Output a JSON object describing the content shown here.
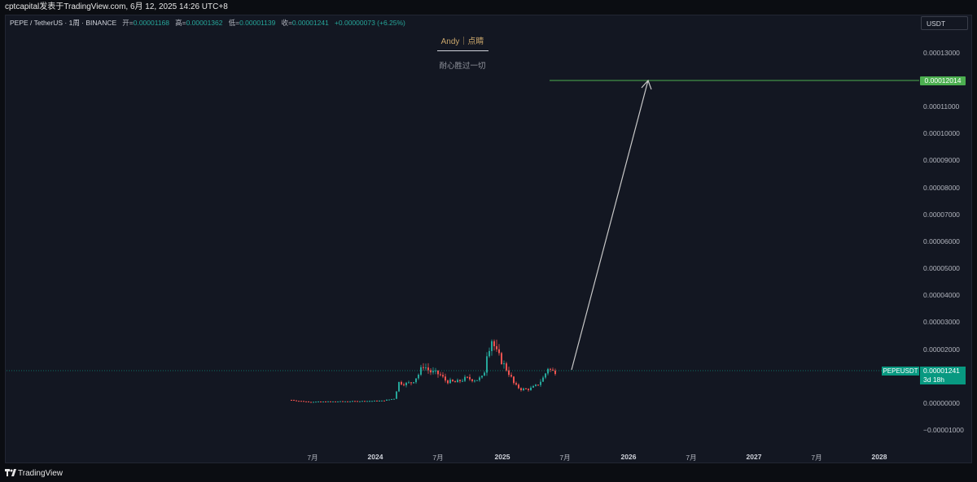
{
  "header": {
    "text": "cptcapital发表于TradingView.com,  6月 12, 2025 14:26 UTC+8"
  },
  "legend": {
    "symbol": "PEPE / TetherUS · 1周 · BINANCE",
    "open_label": "开=",
    "open": "0.00001168",
    "high_label": "高=",
    "high": "0.00001362",
    "low_label": "低=",
    "low": "0.00001139",
    "close_label": "收=",
    "close": "0.00001241",
    "change": "+0.00000073 (+6.25%)"
  },
  "note": {
    "title": "Andy｜点睛",
    "subtitle": "耐心胜过一切"
  },
  "currency": "USDT",
  "y_axis": {
    "ticks": [
      "0.00013000",
      "0.00011000",
      "0.00010000",
      "0.00009000",
      "0.00008000",
      "0.00007000",
      "0.00006000",
      "0.00005000",
      "0.00004000",
      "0.00003000",
      "0.00002000",
      "0.00000000",
      "−0.00001000"
    ],
    "target_price": "0.00012014",
    "symbol_tag": "PEPEUSDT",
    "last_price": "0.00001241",
    "countdown": "3d 18h"
  },
  "x_axis": {
    "ticks": [
      {
        "label": "7月",
        "year": false
      },
      {
        "label": "2024",
        "year": true
      },
      {
        "label": "7月",
        "year": false
      },
      {
        "label": "2025",
        "year": true
      },
      {
        "label": "7月",
        "year": false
      },
      {
        "label": "2026",
        "year": true
      },
      {
        "label": "7月",
        "year": false
      },
      {
        "label": "2027",
        "year": true
      },
      {
        "label": "7月",
        "year": false
      },
      {
        "label": "2028",
        "year": true
      }
    ]
  },
  "footer": {
    "brand": "TradingView"
  },
  "colors": {
    "up": "#26a69a",
    "down": "#ef5350",
    "target": "#4caf50",
    "arrow": "#c8c8c8"
  },
  "chart_data": {
    "type": "candlestick",
    "interval": "1W",
    "ylim": [
      -1e-05,
      0.000135
    ],
    "target_level": 0.00012014,
    "last_price": 1.241e-05,
    "projection": {
      "from": {
        "date": "2025-06-12",
        "value": 1.24e-05
      },
      "to": {
        "date": "2026-04-01",
        "value": 0.00012014
      }
    },
    "series_close_approx": [
      {
        "date": "2023-05",
        "close": 1e-06
      },
      {
        "date": "2023-07",
        "close": 1.3e-06
      },
      {
        "date": "2023-10",
        "close": 7e-07
      },
      {
        "date": "2024-01",
        "close": 1.2e-06
      },
      {
        "date": "2024-03",
        "close": 8e-06
      },
      {
        "date": "2024-05",
        "close": 1.3e-05
      },
      {
        "date": "2024-06",
        "close": 1.5e-05
      },
      {
        "date": "2024-08",
        "close": 8e-06
      },
      {
        "date": "2024-10",
        "close": 9.5e-06
      },
      {
        "date": "2024-12",
        "close": 2.3e-05
      },
      {
        "date": "2025-01",
        "close": 1.9e-05
      },
      {
        "date": "2025-03",
        "close": 7e-06
      },
      {
        "date": "2025-05",
        "close": 1.3e-05
      },
      {
        "date": "2025-06",
        "close": 1.24e-05
      }
    ]
  }
}
